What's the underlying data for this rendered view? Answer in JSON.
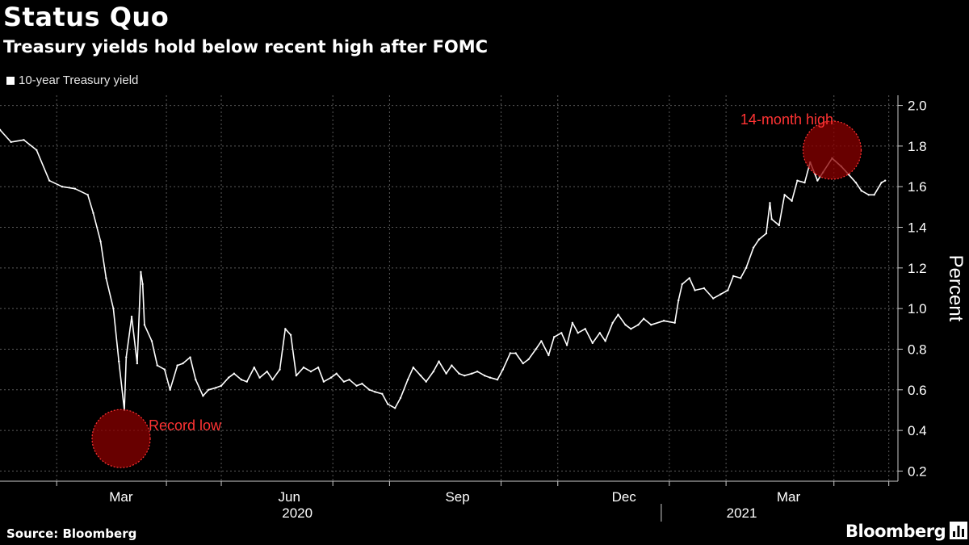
{
  "title": "Status Quo",
  "subtitle": "Treasury yields hold below recent high after FOMC",
  "source": "Source: Bloomberg",
  "brand": "Bloomberg",
  "colors": {
    "background": "#000000",
    "series": "#ffffff",
    "grid": "#5a5a5a",
    "highlight": "#ff3333",
    "highlight_fill": "#8b0000"
  },
  "chart_data": {
    "type": "line",
    "ylabel": "Percent",
    "ylim": [
      0.15,
      2.05
    ],
    "yticks": [
      0.2,
      0.4,
      0.6,
      0.8,
      1.0,
      1.2,
      1.4,
      1.6,
      1.8,
      2.0
    ],
    "ytick_labels": [
      "0.2",
      "0.4",
      "0.6",
      "0.8",
      "1.0",
      "1.2",
      "1.4",
      "1.6",
      "1.8",
      "2.0"
    ],
    "y_axis_side": "right",
    "grid": true,
    "legend_position": "top-left",
    "x_month_labels": [
      {
        "date": "2020-03-01",
        "label": "Mar"
      },
      {
        "date": "2020-06-01",
        "label": "Jun"
      },
      {
        "date": "2020-09-01",
        "label": "Sep"
      },
      {
        "date": "2020-12-01",
        "label": "Dec"
      },
      {
        "date": "2021-03-01",
        "label": "Mar"
      }
    ],
    "x_year_labels": [
      {
        "date": "2020-07-01",
        "label": "2020"
      },
      {
        "date": "2021-03-01",
        "label": "2021"
      }
    ],
    "year_divider_date": "2021-01-01",
    "series": [
      {
        "name": "10-year Treasury yield",
        "points": [
          [
            "2020-01-01",
            1.88
          ],
          [
            "2020-01-07",
            1.82
          ],
          [
            "2020-01-14",
            1.83
          ],
          [
            "2020-01-21",
            1.78
          ],
          [
            "2020-01-28",
            1.63
          ],
          [
            "2020-02-04",
            1.6
          ],
          [
            "2020-02-11",
            1.59
          ],
          [
            "2020-02-18",
            1.56
          ],
          [
            "2020-02-21",
            1.47
          ],
          [
            "2020-02-25",
            1.33
          ],
          [
            "2020-02-28",
            1.15
          ],
          [
            "2020-03-03",
            1.0
          ],
          [
            "2020-03-06",
            0.74
          ],
          [
            "2020-03-09",
            0.5
          ],
          [
            "2020-03-10",
            0.76
          ],
          [
            "2020-03-13",
            0.96
          ],
          [
            "2020-03-16",
            0.73
          ],
          [
            "2020-03-18",
            1.18
          ],
          [
            "2020-03-19",
            1.12
          ],
          [
            "2020-03-20",
            0.92
          ],
          [
            "2020-03-24",
            0.84
          ],
          [
            "2020-03-27",
            0.72
          ],
          [
            "2020-03-31",
            0.7
          ],
          [
            "2020-04-03",
            0.6
          ],
          [
            "2020-04-07",
            0.72
          ],
          [
            "2020-04-10",
            0.73
          ],
          [
            "2020-04-14",
            0.76
          ],
          [
            "2020-04-17",
            0.65
          ],
          [
            "2020-04-21",
            0.57
          ],
          [
            "2020-04-24",
            0.6
          ],
          [
            "2020-04-28",
            0.61
          ],
          [
            "2020-05-01",
            0.62
          ],
          [
            "2020-05-05",
            0.66
          ],
          [
            "2020-05-08",
            0.68
          ],
          [
            "2020-05-12",
            0.65
          ],
          [
            "2020-05-15",
            0.64
          ],
          [
            "2020-05-19",
            0.71
          ],
          [
            "2020-05-22",
            0.66
          ],
          [
            "2020-05-26",
            0.69
          ],
          [
            "2020-05-29",
            0.65
          ],
          [
            "2020-06-02",
            0.7
          ],
          [
            "2020-06-05",
            0.9
          ],
          [
            "2020-06-08",
            0.87
          ],
          [
            "2020-06-11",
            0.67
          ],
          [
            "2020-06-15",
            0.71
          ],
          [
            "2020-06-19",
            0.69
          ],
          [
            "2020-06-23",
            0.71
          ],
          [
            "2020-06-26",
            0.64
          ],
          [
            "2020-06-30",
            0.66
          ],
          [
            "2020-07-03",
            0.68
          ],
          [
            "2020-07-07",
            0.64
          ],
          [
            "2020-07-10",
            0.65
          ],
          [
            "2020-07-14",
            0.62
          ],
          [
            "2020-07-17",
            0.63
          ],
          [
            "2020-07-21",
            0.6
          ],
          [
            "2020-07-24",
            0.59
          ],
          [
            "2020-07-28",
            0.58
          ],
          [
            "2020-07-31",
            0.53
          ],
          [
            "2020-08-04",
            0.51
          ],
          [
            "2020-08-07",
            0.56
          ],
          [
            "2020-08-11",
            0.65
          ],
          [
            "2020-08-14",
            0.71
          ],
          [
            "2020-08-18",
            0.67
          ],
          [
            "2020-08-21",
            0.64
          ],
          [
            "2020-08-25",
            0.69
          ],
          [
            "2020-08-28",
            0.74
          ],
          [
            "2020-09-01",
            0.68
          ],
          [
            "2020-09-04",
            0.72
          ],
          [
            "2020-09-08",
            0.68
          ],
          [
            "2020-09-11",
            0.67
          ],
          [
            "2020-09-15",
            0.68
          ],
          [
            "2020-09-18",
            0.69
          ],
          [
            "2020-09-22",
            0.67
          ],
          [
            "2020-09-25",
            0.66
          ],
          [
            "2020-09-29",
            0.65
          ],
          [
            "2020-10-02",
            0.7
          ],
          [
            "2020-10-06",
            0.78
          ],
          [
            "2020-10-09",
            0.78
          ],
          [
            "2020-10-13",
            0.73
          ],
          [
            "2020-10-16",
            0.75
          ],
          [
            "2020-10-20",
            0.8
          ],
          [
            "2020-10-23",
            0.84
          ],
          [
            "2020-10-27",
            0.77
          ],
          [
            "2020-10-30",
            0.86
          ],
          [
            "2020-11-03",
            0.88
          ],
          [
            "2020-11-06",
            0.82
          ],
          [
            "2020-11-09",
            0.93
          ],
          [
            "2020-11-12",
            0.88
          ],
          [
            "2020-11-16",
            0.9
          ],
          [
            "2020-11-20",
            0.83
          ],
          [
            "2020-11-24",
            0.88
          ],
          [
            "2020-11-27",
            0.84
          ],
          [
            "2020-12-01",
            0.93
          ],
          [
            "2020-12-04",
            0.97
          ],
          [
            "2020-12-08",
            0.92
          ],
          [
            "2020-12-11",
            0.9
          ],
          [
            "2020-12-15",
            0.92
          ],
          [
            "2020-12-18",
            0.95
          ],
          [
            "2020-12-22",
            0.92
          ],
          [
            "2020-12-29",
            0.94
          ],
          [
            "2021-01-04",
            0.93
          ],
          [
            "2021-01-06",
            1.04
          ],
          [
            "2021-01-08",
            1.12
          ],
          [
            "2021-01-12",
            1.15
          ],
          [
            "2021-01-15",
            1.09
          ],
          [
            "2021-01-20",
            1.1
          ],
          [
            "2021-01-25",
            1.05
          ],
          [
            "2021-01-29",
            1.07
          ],
          [
            "2021-02-02",
            1.09
          ],
          [
            "2021-02-05",
            1.16
          ],
          [
            "2021-02-09",
            1.15
          ],
          [
            "2021-02-12",
            1.2
          ],
          [
            "2021-02-16",
            1.3
          ],
          [
            "2021-02-19",
            1.34
          ],
          [
            "2021-02-23",
            1.37
          ],
          [
            "2021-02-25",
            1.52
          ],
          [
            "2021-02-26",
            1.44
          ],
          [
            "2021-03-02",
            1.41
          ],
          [
            "2021-03-05",
            1.56
          ],
          [
            "2021-03-09",
            1.53
          ],
          [
            "2021-03-12",
            1.63
          ],
          [
            "2021-03-16",
            1.62
          ],
          [
            "2021-03-19",
            1.72
          ],
          [
            "2021-03-23",
            1.63
          ],
          [
            "2021-03-26",
            1.67
          ],
          [
            "2021-03-31",
            1.74
          ],
          [
            "2021-04-05",
            1.7
          ],
          [
            "2021-04-09",
            1.66
          ],
          [
            "2021-04-13",
            1.62
          ],
          [
            "2021-04-16",
            1.58
          ],
          [
            "2021-04-20",
            1.56
          ],
          [
            "2021-04-23",
            1.56
          ],
          [
            "2021-04-27",
            1.62
          ],
          [
            "2021-04-29",
            1.63
          ]
        ]
      }
    ],
    "annotations": [
      {
        "text": "Record low",
        "date": "2020-03-09",
        "value": 0.36,
        "kind": "circle"
      },
      {
        "text": "14-month high",
        "date": "2021-03-31",
        "value": 1.78,
        "kind": "circle"
      }
    ]
  }
}
